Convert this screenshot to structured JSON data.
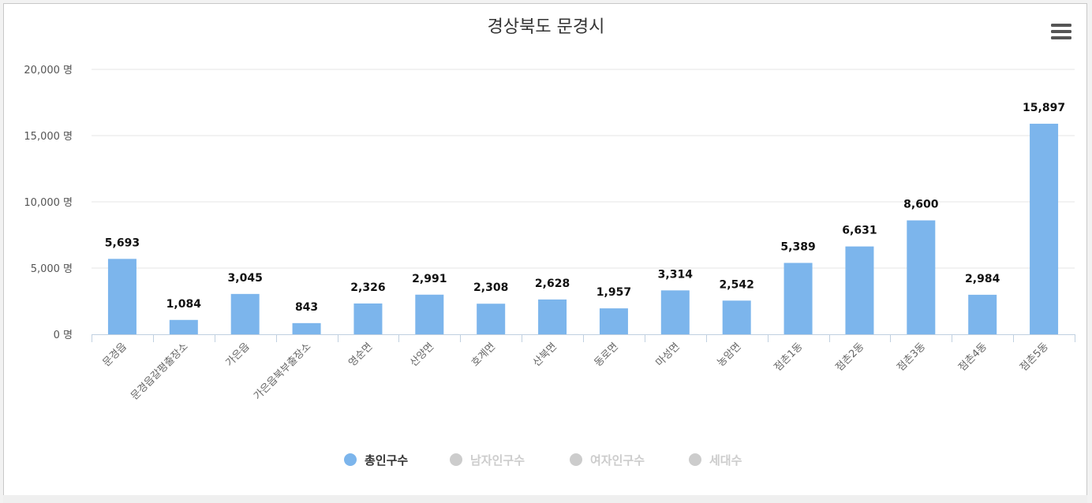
{
  "menu_icon": "hamburger-menu-icon",
  "chart_data": {
    "type": "bar",
    "title": "경상북도 문경시",
    "xlabel": "",
    "ylabel": "",
    "ylim": [
      0,
      20000
    ],
    "y_ticks": [
      0,
      5000,
      10000,
      15000,
      20000
    ],
    "y_tick_labels": [
      "0 명",
      "5,000 명",
      "10,000 명",
      "15,000 명",
      "20,000 명"
    ],
    "grid": true,
    "legend_position": "bottom-center",
    "categories": [
      "문경읍",
      "문경읍갈평출장소",
      "가은읍",
      "가은읍북부출장소",
      "영순면",
      "산양면",
      "호계면",
      "산북면",
      "동로면",
      "마성면",
      "농암면",
      "점촌1동",
      "점촌2동",
      "점촌3동",
      "점촌4동",
      "점촌5동"
    ],
    "series": [
      {
        "name": "총인구수",
        "color": "#7cb5ec",
        "visible": true,
        "values": [
          5693,
          1084,
          3045,
          843,
          2326,
          2991,
          2308,
          2628,
          1957,
          3314,
          2542,
          5389,
          6631,
          8600,
          2984,
          15897
        ],
        "value_labels": [
          "5,693",
          "1,084",
          "3,045",
          "843",
          "2,326",
          "2,991",
          "2,308",
          "2,628",
          "1,957",
          "3,314",
          "2,542",
          "5,389",
          "6,631",
          "8,600",
          "2,984",
          "15,897"
        ]
      },
      {
        "name": "남자인구수",
        "color": "#cccccc",
        "visible": false
      },
      {
        "name": "여자인구수",
        "color": "#cccccc",
        "visible": false
      },
      {
        "name": "세대수",
        "color": "#cccccc",
        "visible": false
      }
    ]
  }
}
